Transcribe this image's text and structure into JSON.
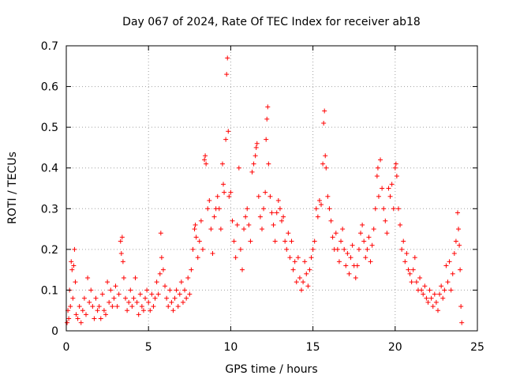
{
  "chart_data": {
    "type": "scatter",
    "title": "Day 067 of 2024, Rate Of TEC Index for receiver ab18",
    "xlabel": "GPS time / hours",
    "ylabel": "ROTI / TECUs",
    "xlim": [
      0,
      25
    ],
    "ylim": [
      0,
      0.7
    ],
    "xticks": [
      "0",
      "5",
      "10",
      "15",
      "20",
      "25"
    ],
    "yticks": [
      "0",
      "0.1",
      "0.2",
      "0.3",
      "0.4",
      "0.5",
      "0.6",
      "0.7"
    ],
    "grid": true,
    "marker": "plus",
    "color": "#ff0000",
    "series": [
      {
        "points": [
          [
            0.05,
            0.02
          ],
          [
            0.1,
            0.05
          ],
          [
            0.15,
            0.03
          ],
          [
            0.2,
            0.1
          ],
          [
            0.25,
            0.06
          ],
          [
            0.3,
            0.17
          ],
          [
            0.35,
            0.15
          ],
          [
            0.4,
            0.08
          ],
          [
            0.45,
            0.16
          ],
          [
            0.5,
            0.2
          ],
          [
            0.55,
            0.12
          ],
          [
            0.6,
            0.04
          ],
          [
            0.7,
            0.03
          ],
          [
            0.8,
            0.06
          ],
          [
            0.9,
            0.02
          ],
          [
            1.0,
            0.05
          ],
          [
            1.1,
            0.08
          ],
          [
            1.2,
            0.04
          ],
          [
            1.3,
            0.13
          ],
          [
            1.4,
            0.07
          ],
          [
            1.5,
            0.1
          ],
          [
            1.6,
            0.06
          ],
          [
            1.7,
            0.03
          ],
          [
            1.8,
            0.08
          ],
          [
            1.9,
            0.05
          ],
          [
            2.0,
            0.06
          ],
          [
            2.1,
            0.03
          ],
          [
            2.2,
            0.09
          ],
          [
            2.3,
            0.05
          ],
          [
            2.4,
            0.04
          ],
          [
            2.5,
            0.12
          ],
          [
            2.6,
            0.07
          ],
          [
            2.7,
            0.1
          ],
          [
            2.8,
            0.06
          ],
          [
            2.9,
            0.08
          ],
          [
            3.0,
            0.11
          ],
          [
            3.1,
            0.06
          ],
          [
            3.2,
            0.09
          ],
          [
            3.3,
            0.22
          ],
          [
            3.35,
            0.19
          ],
          [
            3.4,
            0.23
          ],
          [
            3.45,
            0.17
          ],
          [
            3.5,
            0.13
          ],
          [
            3.6,
            0.08
          ],
          [
            3.7,
            0.05
          ],
          [
            3.8,
            0.07
          ],
          [
            3.9,
            0.1
          ],
          [
            4.0,
            0.06
          ],
          [
            4.1,
            0.08
          ],
          [
            4.2,
            0.13
          ],
          [
            4.3,
            0.07
          ],
          [
            4.4,
            0.04
          ],
          [
            4.5,
            0.09
          ],
          [
            4.6,
            0.06
          ],
          [
            4.7,
            0.05
          ],
          [
            4.8,
            0.08
          ],
          [
            4.9,
            0.1
          ],
          [
            5.0,
            0.07
          ],
          [
            5.1,
            0.05
          ],
          [
            5.2,
            0.09
          ],
          [
            5.3,
            0.06
          ],
          [
            5.4,
            0.08
          ],
          [
            5.5,
            0.12
          ],
          [
            5.6,
            0.09
          ],
          [
            5.7,
            0.14
          ],
          [
            5.75,
            0.24
          ],
          [
            5.8,
            0.18
          ],
          [
            5.9,
            0.15
          ],
          [
            6.0,
            0.11
          ],
          [
            6.1,
            0.08
          ],
          [
            6.2,
            0.06
          ],
          [
            6.3,
            0.1
          ],
          [
            6.4,
            0.07
          ],
          [
            6.5,
            0.05
          ],
          [
            6.6,
            0.08
          ],
          [
            6.7,
            0.1
          ],
          [
            6.8,
            0.06
          ],
          [
            6.9,
            0.09
          ],
          [
            7.0,
            0.12
          ],
          [
            7.1,
            0.07
          ],
          [
            7.2,
            0.1
          ],
          [
            7.3,
            0.08
          ],
          [
            7.4,
            0.13
          ],
          [
            7.5,
            0.09
          ],
          [
            7.6,
            0.15
          ],
          [
            7.7,
            0.2
          ],
          [
            7.8,
            0.25
          ],
          [
            7.85,
            0.26
          ],
          [
            7.9,
            0.23
          ],
          [
            8.0,
            0.18
          ],
          [
            8.1,
            0.22
          ],
          [
            8.2,
            0.27
          ],
          [
            8.3,
            0.2
          ],
          [
            8.4,
            0.42
          ],
          [
            8.45,
            0.43
          ],
          [
            8.5,
            0.41
          ],
          [
            8.6,
            0.3
          ],
          [
            8.7,
            0.32
          ],
          [
            8.8,
            0.25
          ],
          [
            8.9,
            0.19
          ],
          [
            9.0,
            0.28
          ],
          [
            9.1,
            0.3
          ],
          [
            9.2,
            0.33
          ],
          [
            9.3,
            0.3
          ],
          [
            9.4,
            0.25
          ],
          [
            9.5,
            0.41
          ],
          [
            9.55,
            0.36
          ],
          [
            9.6,
            0.34
          ],
          [
            9.7,
            0.47
          ],
          [
            9.75,
            0.63
          ],
          [
            9.8,
            0.67
          ],
          [
            9.85,
            0.49
          ],
          [
            9.9,
            0.33
          ],
          [
            10.0,
            0.34
          ],
          [
            10.1,
            0.27
          ],
          [
            10.2,
            0.22
          ],
          [
            10.3,
            0.18
          ],
          [
            10.4,
            0.26
          ],
          [
            10.5,
            0.4
          ],
          [
            10.6,
            0.2
          ],
          [
            10.7,
            0.15
          ],
          [
            10.8,
            0.25
          ],
          [
            10.9,
            0.28
          ],
          [
            11.0,
            0.3
          ],
          [
            11.1,
            0.26
          ],
          [
            11.2,
            0.22
          ],
          [
            11.3,
            0.39
          ],
          [
            11.4,
            0.41
          ],
          [
            11.5,
            0.43
          ],
          [
            11.55,
            0.45
          ],
          [
            11.6,
            0.46
          ],
          [
            11.7,
            0.33
          ],
          [
            11.8,
            0.28
          ],
          [
            11.9,
            0.25
          ],
          [
            12.0,
            0.3
          ],
          [
            12.1,
            0.34
          ],
          [
            12.15,
            0.47
          ],
          [
            12.2,
            0.52
          ],
          [
            12.25,
            0.55
          ],
          [
            12.3,
            0.41
          ],
          [
            12.4,
            0.33
          ],
          [
            12.5,
            0.29
          ],
          [
            12.6,
            0.26
          ],
          [
            12.7,
            0.22
          ],
          [
            12.8,
            0.29
          ],
          [
            12.9,
            0.32
          ],
          [
            13.0,
            0.3
          ],
          [
            13.1,
            0.27
          ],
          [
            13.2,
            0.28
          ],
          [
            13.3,
            0.22
          ],
          [
            13.4,
            0.2
          ],
          [
            13.5,
            0.24
          ],
          [
            13.6,
            0.18
          ],
          [
            13.7,
            0.22
          ],
          [
            13.8,
            0.15
          ],
          [
            13.9,
            0.17
          ],
          [
            14.0,
            0.12
          ],
          [
            14.1,
            0.18
          ],
          [
            14.2,
            0.13
          ],
          [
            14.3,
            0.1
          ],
          [
            14.4,
            0.12
          ],
          [
            14.5,
            0.17
          ],
          [
            14.6,
            0.14
          ],
          [
            14.7,
            0.11
          ],
          [
            14.8,
            0.15
          ],
          [
            14.9,
            0.18
          ],
          [
            15.0,
            0.2
          ],
          [
            15.1,
            0.22
          ],
          [
            15.2,
            0.3
          ],
          [
            15.3,
            0.28
          ],
          [
            15.4,
            0.32
          ],
          [
            15.5,
            0.31
          ],
          [
            15.6,
            0.41
          ],
          [
            15.65,
            0.51
          ],
          [
            15.7,
            0.54
          ],
          [
            15.75,
            0.43
          ],
          [
            15.8,
            0.4
          ],
          [
            15.9,
            0.33
          ],
          [
            16.0,
            0.3
          ],
          [
            16.1,
            0.27
          ],
          [
            16.2,
            0.23
          ],
          [
            16.3,
            0.2
          ],
          [
            16.4,
            0.24
          ],
          [
            16.5,
            0.2
          ],
          [
            16.6,
            0.17
          ],
          [
            16.7,
            0.22
          ],
          [
            16.8,
            0.25
          ],
          [
            16.9,
            0.2
          ],
          [
            17.0,
            0.16
          ],
          [
            17.1,
            0.19
          ],
          [
            17.2,
            0.14
          ],
          [
            17.3,
            0.18
          ],
          [
            17.4,
            0.21
          ],
          [
            17.5,
            0.16
          ],
          [
            17.6,
            0.13
          ],
          [
            17.7,
            0.16
          ],
          [
            17.8,
            0.2
          ],
          [
            17.9,
            0.24
          ],
          [
            18.0,
            0.26
          ],
          [
            18.1,
            0.22
          ],
          [
            18.2,
            0.18
          ],
          [
            18.3,
            0.2
          ],
          [
            18.4,
            0.23
          ],
          [
            18.5,
            0.17
          ],
          [
            18.6,
            0.21
          ],
          [
            18.7,
            0.25
          ],
          [
            18.8,
            0.3
          ],
          [
            18.9,
            0.38
          ],
          [
            18.95,
            0.4
          ],
          [
            19.0,
            0.33
          ],
          [
            19.1,
            0.42
          ],
          [
            19.2,
            0.35
          ],
          [
            19.3,
            0.3
          ],
          [
            19.4,
            0.27
          ],
          [
            19.5,
            0.24
          ],
          [
            19.6,
            0.35
          ],
          [
            19.7,
            0.33
          ],
          [
            19.8,
            0.36
          ],
          [
            19.9,
            0.3
          ],
          [
            20.0,
            0.4
          ],
          [
            20.05,
            0.41
          ],
          [
            20.1,
            0.38
          ],
          [
            20.2,
            0.3
          ],
          [
            20.3,
            0.26
          ],
          [
            20.4,
            0.2
          ],
          [
            20.5,
            0.22
          ],
          [
            20.6,
            0.17
          ],
          [
            20.7,
            0.19
          ],
          [
            20.8,
            0.15
          ],
          [
            20.9,
            0.14
          ],
          [
            21.0,
            0.12
          ],
          [
            21.1,
            0.15
          ],
          [
            21.2,
            0.18
          ],
          [
            21.3,
            0.12
          ],
          [
            21.4,
            0.1
          ],
          [
            21.5,
            0.13
          ],
          [
            21.6,
            0.1
          ],
          [
            21.7,
            0.09
          ],
          [
            21.8,
            0.11
          ],
          [
            21.9,
            0.08
          ],
          [
            22.0,
            0.07
          ],
          [
            22.1,
            0.1
          ],
          [
            22.2,
            0.08
          ],
          [
            22.3,
            0.06
          ],
          [
            22.4,
            0.09
          ],
          [
            22.5,
            0.07
          ],
          [
            22.6,
            0.05
          ],
          [
            22.7,
            0.09
          ],
          [
            22.8,
            0.11
          ],
          [
            22.9,
            0.08
          ],
          [
            23.0,
            0.1
          ],
          [
            23.1,
            0.16
          ],
          [
            23.2,
            0.12
          ],
          [
            23.3,
            0.17
          ],
          [
            23.4,
            0.1
          ],
          [
            23.5,
            0.14
          ],
          [
            23.6,
            0.19
          ],
          [
            23.7,
            0.22
          ],
          [
            23.8,
            0.29
          ],
          [
            23.85,
            0.25
          ],
          [
            23.9,
            0.21
          ],
          [
            23.95,
            0.15
          ],
          [
            24.0,
            0.06
          ],
          [
            24.05,
            0.02
          ]
        ]
      }
    ]
  }
}
